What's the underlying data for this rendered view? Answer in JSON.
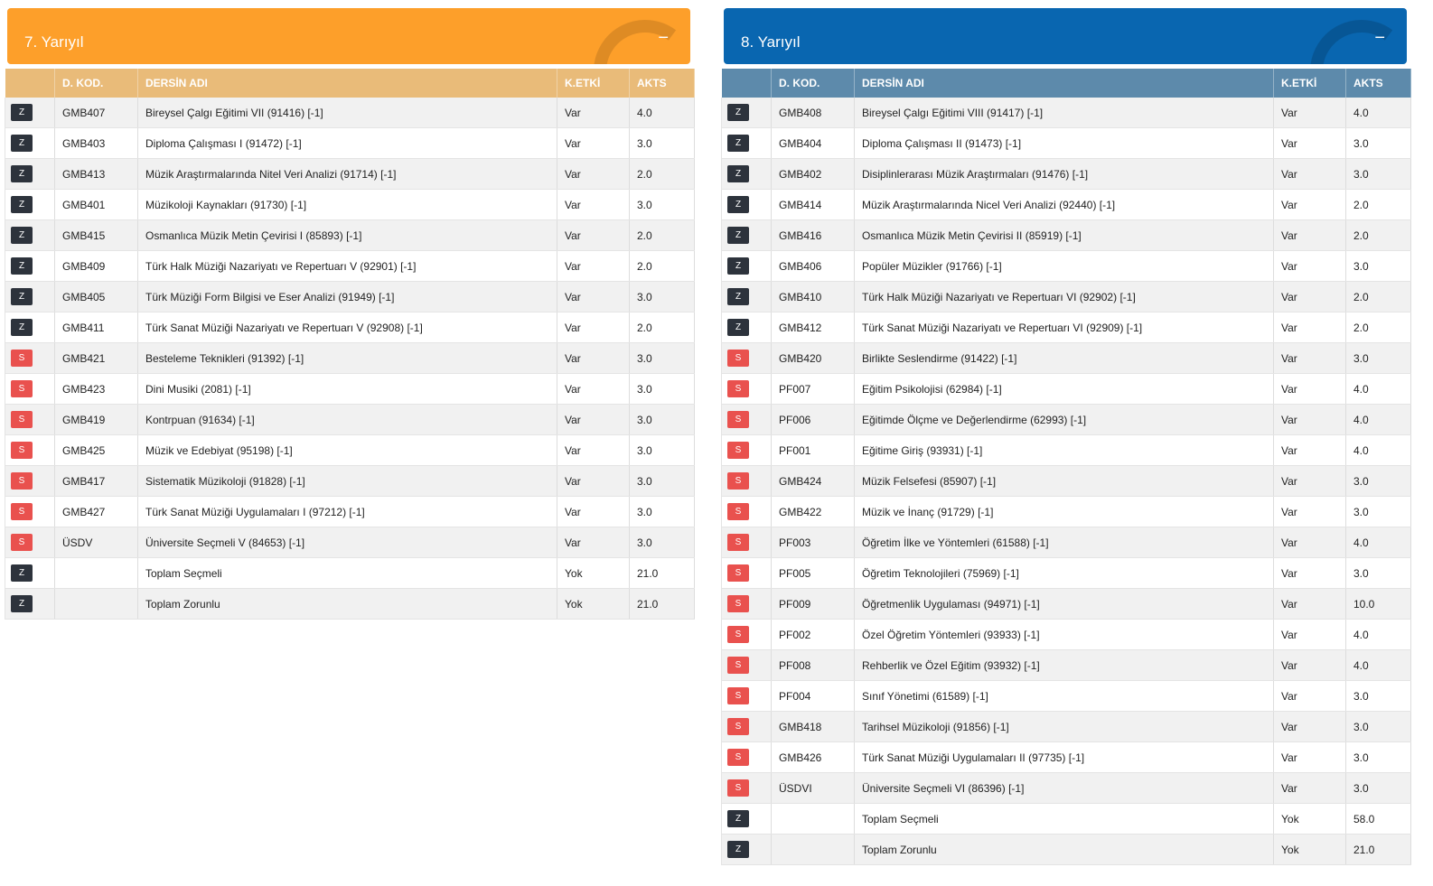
{
  "panels": [
    {
      "title": "7. Yarıyıl",
      "columns": [
        "D. KOD.",
        "DERSİN ADI",
        "K.ETKİ",
        "AKTS"
      ],
      "rows": [
        {
          "b": "Z",
          "code": "GMB407",
          "name": "Bireysel Çalgı Eğitimi VII (91416) [-1]",
          "k": "Var",
          "akts": "4.0"
        },
        {
          "b": "Z",
          "code": "GMB403",
          "name": "Diploma Çalışması I (91472) [-1]",
          "k": "Var",
          "akts": "3.0"
        },
        {
          "b": "Z",
          "code": "GMB413",
          "name": "Müzik Araştırmalarında Nitel Veri Analizi (91714) [-1]",
          "k": "Var",
          "akts": "2.0"
        },
        {
          "b": "Z",
          "code": "GMB401",
          "name": "Müzikoloji Kaynakları (91730) [-1]",
          "k": "Var",
          "akts": "3.0"
        },
        {
          "b": "Z",
          "code": "GMB415",
          "name": "Osmanlıca Müzik Metin Çevirisi I (85893) [-1]",
          "k": "Var",
          "akts": "2.0"
        },
        {
          "b": "Z",
          "code": "GMB409",
          "name": "Türk Halk Müziği Nazariyatı ve Repertuarı V (92901) [-1]",
          "k": "Var",
          "akts": "2.0"
        },
        {
          "b": "Z",
          "code": "GMB405",
          "name": "Türk Müziği Form Bilgisi ve Eser Analizi (91949) [-1]",
          "k": "Var",
          "akts": "3.0"
        },
        {
          "b": "Z",
          "code": "GMB411",
          "name": "Türk Sanat Müziği Nazariyatı ve Repertuarı V (92908) [-1]",
          "k": "Var",
          "akts": "2.0"
        },
        {
          "b": "S",
          "code": "GMB421",
          "name": "Besteleme Teknikleri (91392) [-1]",
          "k": "Var",
          "akts": "3.0"
        },
        {
          "b": "S",
          "code": "GMB423",
          "name": "Dini Musiki (2081) [-1]",
          "k": "Var",
          "akts": "3.0"
        },
        {
          "b": "S",
          "code": "GMB419",
          "name": "Kontrpuan (91634) [-1]",
          "k": "Var",
          "akts": "3.0"
        },
        {
          "b": "S",
          "code": "GMB425",
          "name": "Müzik ve Edebiyat (95198) [-1]",
          "k": "Var",
          "akts": "3.0"
        },
        {
          "b": "S",
          "code": "GMB417",
          "name": "Sistematik Müzikoloji (91828) [-1]",
          "k": "Var",
          "akts": "3.0"
        },
        {
          "b": "S",
          "code": "GMB427",
          "name": "Türk Sanat Müziği Uygulamaları I (97212) [-1]",
          "k": "Var",
          "akts": "3.0"
        },
        {
          "b": "S",
          "code": "ÜSDV",
          "name": "Üniversite Seçmeli V (84653) [-1]",
          "k": "Var",
          "akts": "3.0"
        },
        {
          "b": "Z",
          "name": "Toplam Seçmeli",
          "k": "Yok",
          "akts": "21.0"
        },
        {
          "b": "Z",
          "name": "Toplam Zorunlu",
          "k": "Yok",
          "akts": "21.0"
        }
      ]
    },
    {
      "title": "8. Yarıyıl",
      "columns": [
        "D. KOD.",
        "DERSİN ADI",
        "K.ETKİ",
        "AKTS"
      ],
      "rows": [
        {
          "b": "Z",
          "code": "GMB408",
          "name": "Bireysel Çalgı Eğitimi VIII (91417) [-1]",
          "k": "Var",
          "akts": "4.0"
        },
        {
          "b": "Z",
          "code": "GMB404",
          "name": "Diploma Çalışması II (91473) [-1]",
          "k": "Var",
          "akts": "3.0"
        },
        {
          "b": "Z",
          "code": "GMB402",
          "name": "Disiplinlerarası Müzik Araştırmaları (91476) [-1]",
          "k": "Var",
          "akts": "3.0"
        },
        {
          "b": "Z",
          "code": "GMB414",
          "name": "Müzik Araştırmalarında Nicel Veri Analizi (92440) [-1]",
          "k": "Var",
          "akts": "2.0"
        },
        {
          "b": "Z",
          "code": "GMB416",
          "name": "Osmanlıca Müzik Metin Çevirisi II (85919) [-1]",
          "k": "Var",
          "akts": "2.0"
        },
        {
          "b": "Z",
          "code": "GMB406",
          "name": "Popüler Müzikler (91766) [-1]",
          "k": "Var",
          "akts": "3.0"
        },
        {
          "b": "Z",
          "code": "GMB410",
          "name": "Türk Halk Müziği Nazariyatı ve Repertuarı VI (92902) [-1]",
          "k": "Var",
          "akts": "2.0"
        },
        {
          "b": "Z",
          "code": "GMB412",
          "name": "Türk Sanat Müziği Nazariyatı ve Repertuarı VI (92909) [-1]",
          "k": "Var",
          "akts": "2.0"
        },
        {
          "b": "S",
          "code": "GMB420",
          "name": "Birlikte Seslendirme (91422) [-1]",
          "k": "Var",
          "akts": "3.0"
        },
        {
          "b": "S",
          "code": "PF007",
          "name": "Eğitim Psikolojisi (62984) [-1]",
          "k": "Var",
          "akts": "4.0"
        },
        {
          "b": "S",
          "code": "PF006",
          "name": "Eğitimde Ölçme ve Değerlendirme (62993) [-1]",
          "k": "Var",
          "akts": "4.0"
        },
        {
          "b": "S",
          "code": "PF001",
          "name": "Eğitime Giriş (93931) [-1]",
          "k": "Var",
          "akts": "4.0"
        },
        {
          "b": "S",
          "code": "GMB424",
          "name": "Müzik Felsefesi (85907) [-1]",
          "k": "Var",
          "akts": "3.0"
        },
        {
          "b": "S",
          "code": "GMB422",
          "name": "Müzik ve İnanç (91729) [-1]",
          "k": "Var",
          "akts": "3.0"
        },
        {
          "b": "S",
          "code": "PF003",
          "name": "Öğretim İlke ve Yöntemleri (61588) [-1]",
          "k": "Var",
          "akts": "4.0"
        },
        {
          "b": "S",
          "code": "PF005",
          "name": "Öğretim Teknolojileri (75969) [-1]",
          "k": "Var",
          "akts": "3.0"
        },
        {
          "b": "S",
          "code": "PF009",
          "name": "Öğretmenlik Uygulaması (94971) [-1]",
          "k": "Var",
          "akts": "10.0"
        },
        {
          "b": "S",
          "code": "PF002",
          "name": "Özel Öğretim Yöntemleri (93933) [-1]",
          "k": "Var",
          "akts": "4.0"
        },
        {
          "b": "S",
          "code": "PF008",
          "name": "Rehberlik ve Özel Eğitim (93932) [-1]",
          "k": "Var",
          "akts": "4.0"
        },
        {
          "b": "S",
          "code": "PF004",
          "name": "Sınıf Yönetimi (61589) [-1]",
          "k": "Var",
          "akts": "3.0"
        },
        {
          "b": "S",
          "code": "GMB418",
          "name": "Tarihsel Müzikoloji (91856) [-1]",
          "k": "Var",
          "akts": "3.0"
        },
        {
          "b": "S",
          "code": "GMB426",
          "name": "Türk Sanat Müziği Uygulamaları II (97735) [-1]",
          "k": "Var",
          "akts": "3.0"
        },
        {
          "b": "S",
          "code": "ÜSDVI",
          "name": "Üniversite Seçmeli VI (86396) [-1]",
          "k": "Var",
          "akts": "3.0"
        },
        {
          "b": "Z",
          "name": "Toplam Seçmeli",
          "k": "Yok",
          "akts": "58.0"
        },
        {
          "b": "Z",
          "name": "Toplam Zorunlu",
          "k": "Yok",
          "akts": "21.0"
        }
      ]
    }
  ]
}
